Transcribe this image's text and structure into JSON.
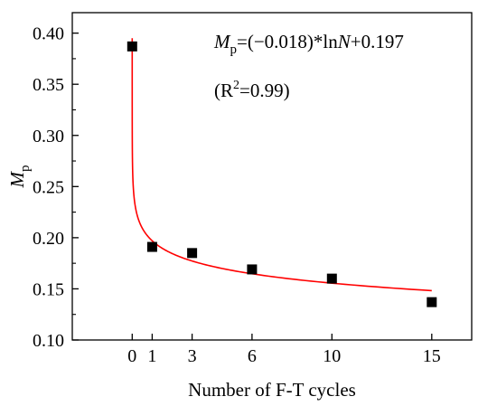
{
  "chart_data": {
    "type": "scatter",
    "xlabel": "Number of F-T cycles",
    "ylabel": {
      "main": "M",
      "sub": "p"
    },
    "xlim": [
      -3,
      17
    ],
    "ylim": [
      0.1,
      0.42
    ],
    "xticks": [
      0,
      1,
      3,
      6,
      10,
      15
    ],
    "xtick_labels": [
      "0",
      "1",
      "3",
      "6",
      "10",
      "15"
    ],
    "yticks": [
      0.1,
      0.15,
      0.2,
      0.25,
      0.3,
      0.35,
      0.4
    ],
    "ytick_labels": [
      "0.10",
      "0.15",
      "0.20",
      "0.25",
      "0.30",
      "0.35",
      "0.40"
    ],
    "grid": false,
    "series": [
      {
        "kind": "scatter",
        "marker": "square",
        "color": "#000000",
        "points": [
          {
            "x": 0,
            "y": 0.387
          },
          {
            "x": 1,
            "y": 0.191
          },
          {
            "x": 3,
            "y": 0.185
          },
          {
            "x": 6,
            "y": 0.169
          },
          {
            "x": 10,
            "y": 0.16
          },
          {
            "x": 15,
            "y": 0.137
          }
        ]
      },
      {
        "kind": "fit",
        "color": "#ff0000",
        "equation": {
          "a": -0.018,
          "b": 0.197
        },
        "x_range": [
          0,
          15
        ]
      }
    ],
    "annotations": {
      "equation": {
        "lhs_main": "M",
        "lhs_sub": "p",
        "rhs_pre": "=(−0.018)*ln",
        "var": "N",
        "rhs_post": "+0.197"
      },
      "r2": {
        "pre": "(R",
        "sup": "2",
        "post": "=0.99)"
      }
    }
  }
}
